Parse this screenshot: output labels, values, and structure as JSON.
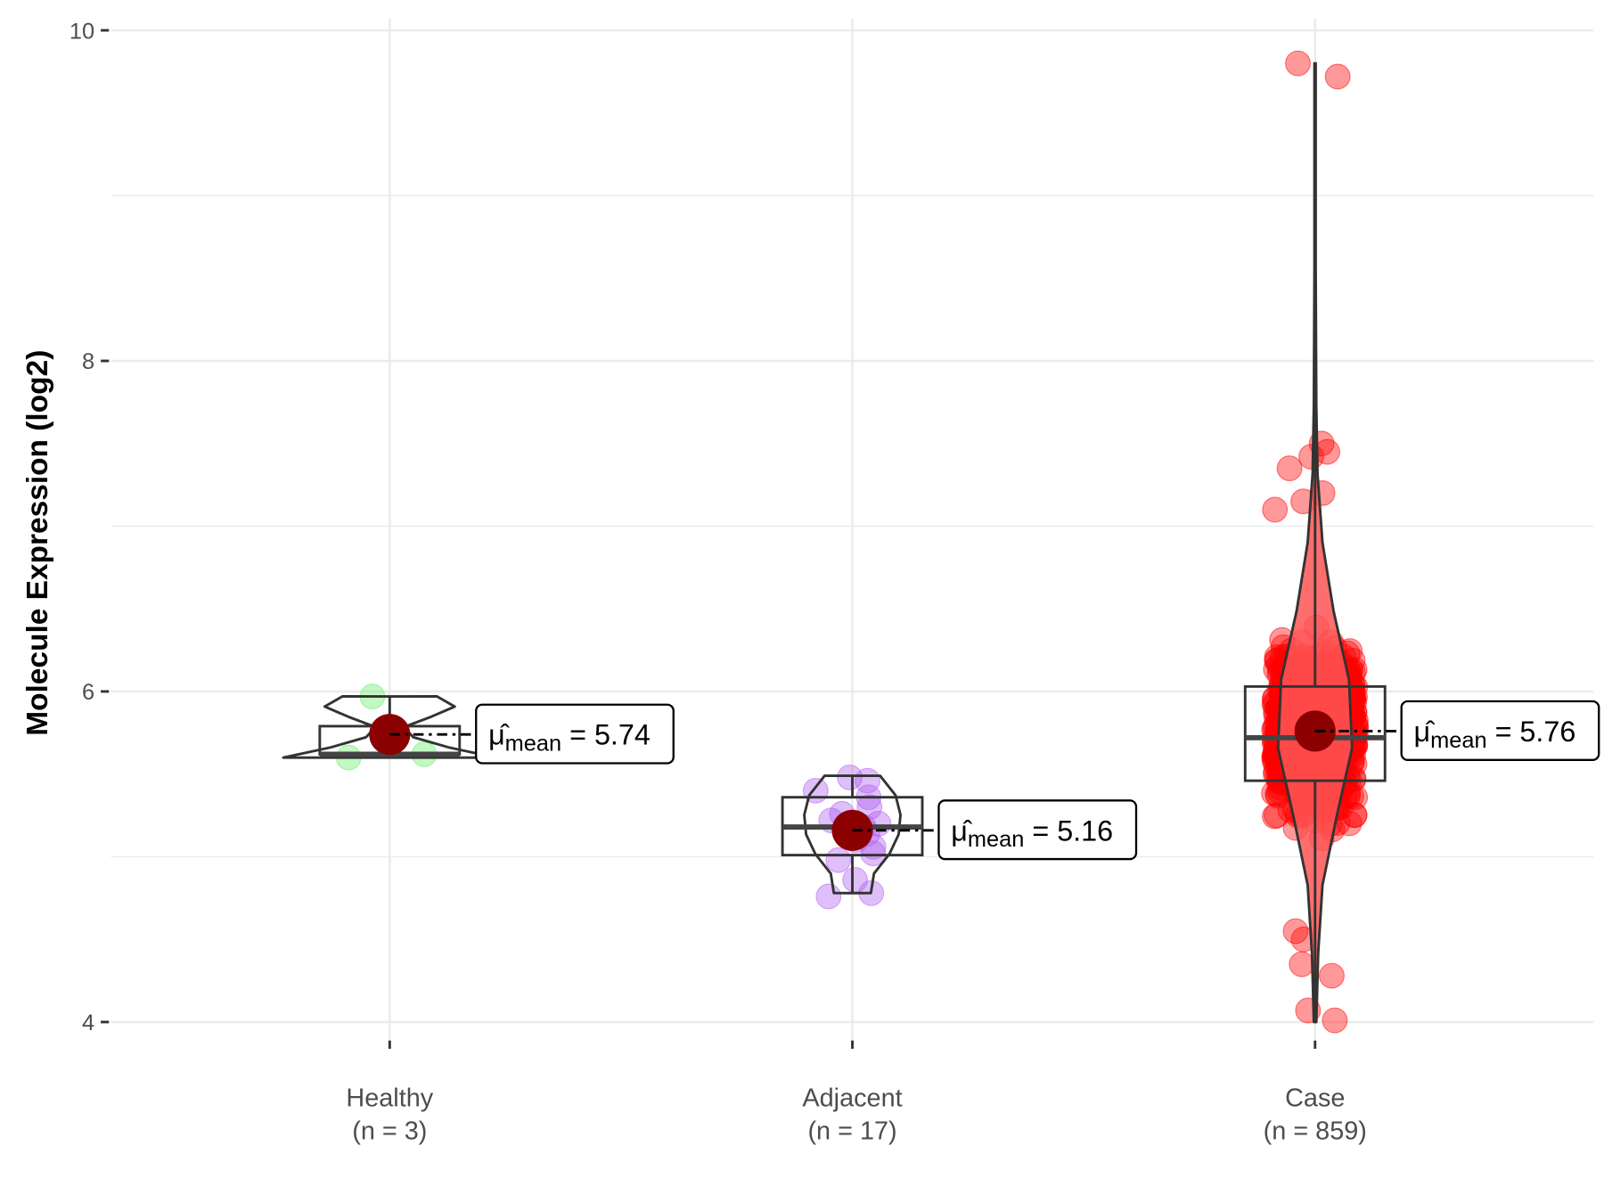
{
  "chart_data": {
    "type": "violin-box-scatter",
    "title": "",
    "xlabel": "",
    "ylabel": "Molecule Expression (log2)",
    "ylim": [
      3.75,
      10.1
    ],
    "yticks": [
      4,
      6,
      8,
      10
    ],
    "ytick_labels": [
      "4",
      "6",
      "8",
      "10"
    ],
    "grid": true,
    "legend": "none",
    "groups": [
      {
        "name": "Healthy",
        "n_label": "(n = 3)",
        "color": "#66ee66",
        "box": {
          "q1": 5.62,
          "median": 5.62,
          "q3": 5.79,
          "whisker_low": 5.6,
          "whisker_high": 5.97
        },
        "violin": {
          "ymin": 5.6,
          "ymax": 5.97,
          "profile": [
            0.9,
            0.5,
            0.2,
            0.12,
            0.35,
            0.55,
            0.4
          ]
        },
        "mean": 5.74,
        "mean_label": "5.74",
        "points": [
          5.6,
          5.62,
          5.97
        ]
      },
      {
        "name": "Adjacent",
        "n_label": "(n = 17)",
        "color": "#b060f0",
        "box": {
          "q1": 5.01,
          "median": 5.18,
          "q3": 5.36,
          "whisker_low": 4.78,
          "whisker_high": 5.49
        },
        "violin": {
          "ymin": 4.78,
          "ymax": 5.49,
          "profile": [
            0.3,
            0.35,
            0.6,
            0.75,
            0.78,
            0.7,
            0.45
          ]
        },
        "mean": 5.16,
        "mean_label": "5.16",
        "points": [
          4.76,
          4.78,
          4.86,
          4.98,
          5.02,
          5.06,
          5.1,
          5.14,
          5.18,
          5.2,
          5.22,
          5.26,
          5.3,
          5.36,
          5.4,
          5.46,
          5.48
        ]
      },
      {
        "name": "Case",
        "n_label": "(n = 859)",
        "color": "#ff0000",
        "box": {
          "q1": 5.46,
          "median": 5.72,
          "q3": 6.03,
          "whisker_low": 4.0,
          "whisker_high": 7.7
        },
        "violin": {
          "ymin": 4.0,
          "ymax": 9.8,
          "profile": [
            0.02,
            0.05,
            0.12,
            0.35,
            0.6,
            0.55,
            0.3,
            0.12,
            0.04,
            0.02,
            0.015,
            0.01,
            0.01,
            0.01,
            0.01
          ]
        },
        "mean": 5.76,
        "mean_label": "5.76",
        "bulk": {
          "count": 859,
          "center": 5.76,
          "sd": 0.4
        },
        "outliers": [
          9.8,
          9.72,
          7.5,
          7.45,
          7.42,
          7.35,
          7.2,
          7.15,
          7.1,
          4.55,
          4.5,
          4.35,
          4.28,
          4.07,
          4.01
        ]
      }
    ],
    "mean_symbol": "μ̂",
    "mean_subscript": "mean",
    "mean_eq": "="
  }
}
